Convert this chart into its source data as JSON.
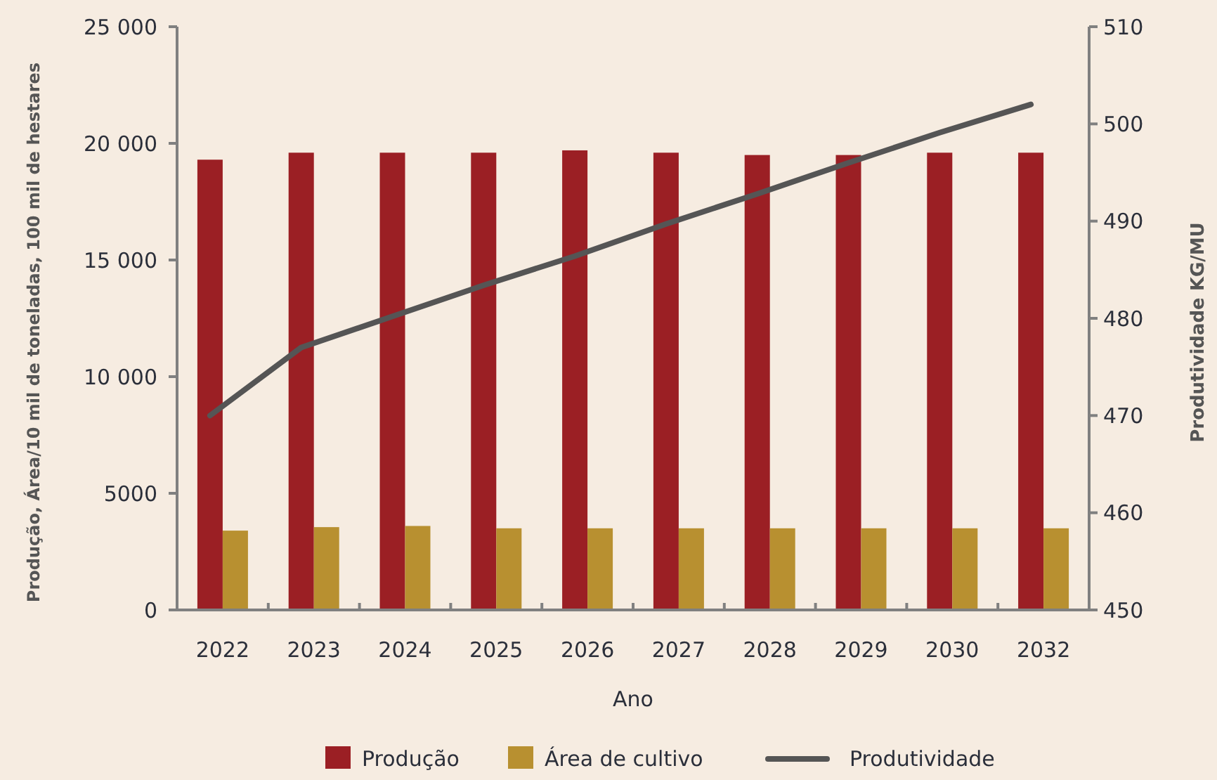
{
  "chart_data": {
    "type": "bar",
    "xlabel": "Ano",
    "ylabel": "Produção, Área/10 mil de toneladas, 100 mil de hestares",
    "y2label": "Produtividade KG/MU",
    "categories": [
      "2022",
      "2023",
      "2024",
      "2025",
      "2026",
      "2027",
      "2028",
      "2029",
      "2030",
      "2032"
    ],
    "series": [
      {
        "name": "Produção",
        "color": "#9b1f24",
        "values": [
          19300,
          19600,
          19600,
          19600,
          19700,
          19600,
          19500,
          19500,
          19600,
          19600
        ]
      },
      {
        "name": "Área de cultivo",
        "color": "#b89030",
        "values": [
          3400,
          3550,
          3600,
          3500,
          3500,
          3500,
          3500,
          3500,
          3500,
          3500
        ]
      },
      {
        "name": "Produtividade",
        "type": "line",
        "axis": "y2",
        "color": "#555555",
        "values": [
          470,
          477,
          480.2,
          483.4,
          486.4,
          489.7,
          492.8,
          496,
          499.1,
          502
        ]
      }
    ],
    "ylim": [
      0,
      25000
    ],
    "yticks": [
      {
        "value": 0,
        "label": "0"
      },
      {
        "value": 5000,
        "label": "5000"
      },
      {
        "value": 10000,
        "label": "10 000"
      },
      {
        "value": 15000,
        "label": "15 000"
      },
      {
        "value": 20000,
        "label": "20 000"
      },
      {
        "value": 25000,
        "label": "25 000"
      }
    ],
    "y2lim": [
      450,
      510
    ],
    "y2ticks": [
      450,
      460,
      470,
      480,
      490,
      500,
      510
    ],
    "legend": "bottom",
    "grid": false,
    "marker": "none",
    "line_style": "solid"
  }
}
